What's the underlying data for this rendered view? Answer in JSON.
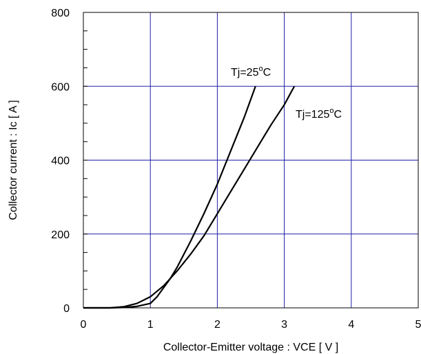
{
  "chart_data": {
    "type": "line",
    "title": "",
    "xlabel": "Collector-Emitter voltage : VCE [ V ]",
    "ylabel": "Collector current : Ic [ A ]",
    "xlim": [
      0,
      5
    ],
    "ylim": [
      0,
      800
    ],
    "xticks": [
      "0",
      "1",
      "2",
      "3",
      "4",
      "5"
    ],
    "yticks": [
      "0",
      "200",
      "400",
      "600",
      "800"
    ],
    "x_major_step": 1,
    "y_major_step": 200,
    "y_minor_step": 50,
    "grid": true,
    "grid_color": "#1f1fa8",
    "line_color": "#000000",
    "series": [
      {
        "name": "Tj=25°C",
        "label_main": "Tj=25",
        "label_sup": "o",
        "label_tail": "C",
        "points": [
          [
            0,
            0
          ],
          [
            0.4,
            0
          ],
          [
            0.6,
            1
          ],
          [
            0.8,
            4
          ],
          [
            1.0,
            12
          ],
          [
            1.1,
            30
          ],
          [
            1.2,
            55
          ],
          [
            1.3,
            80
          ],
          [
            1.4,
            110
          ],
          [
            1.5,
            145
          ],
          [
            1.6,
            180
          ],
          [
            1.8,
            255
          ],
          [
            2.0,
            335
          ],
          [
            2.2,
            425
          ],
          [
            2.4,
            515
          ],
          [
            2.57,
            600
          ]
        ]
      },
      {
        "name": "Tj=125°C",
        "label_main": "Tj=125",
        "label_sup": "o",
        "label_tail": "C",
        "points": [
          [
            0,
            0
          ],
          [
            0.4,
            0
          ],
          [
            0.6,
            3
          ],
          [
            0.8,
            12
          ],
          [
            1.0,
            30
          ],
          [
            1.2,
            60
          ],
          [
            1.4,
            100
          ],
          [
            1.6,
            145
          ],
          [
            1.8,
            195
          ],
          [
            2.0,
            255
          ],
          [
            2.2,
            315
          ],
          [
            2.4,
            375
          ],
          [
            2.6,
            435
          ],
          [
            2.8,
            495
          ],
          [
            3.0,
            550
          ],
          [
            3.15,
            600
          ]
        ]
      }
    ]
  }
}
